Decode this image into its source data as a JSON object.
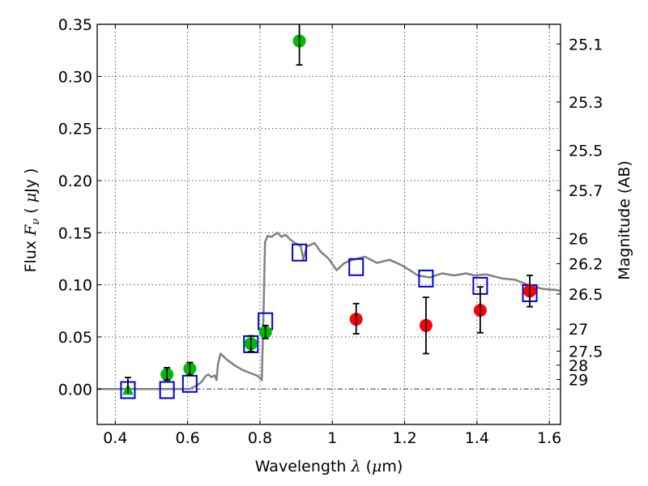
{
  "chart_data": {
    "type": "scatter",
    "title": "",
    "xlabel": "Wavelength  λ (μm)",
    "xlabel_parts": {
      "prefix": "Wavelength  ",
      "symbol": "λ",
      "suffix_open": " (",
      "unit_symbol": "μ",
      "suffix_close": "m)"
    },
    "ylabel": "Flux  Fν  ( μJy )",
    "ylabel_parts": {
      "prefix": "Flux  ",
      "symbol": "F",
      "sub": "ν",
      "mid": "  ( ",
      "unit_symbol": "μ",
      "suffix": "Jy )"
    },
    "y2label": "Magnitude (AB)",
    "xlim": [
      0.35,
      1.631
    ],
    "ylim": [
      -0.034,
      0.35
    ],
    "grid": true,
    "x_ticks": [
      0.4,
      0.6,
      0.8,
      1.0,
      1.2,
      1.4,
      1.6
    ],
    "x_tick_labels": [
      "0.4",
      "0.6",
      "0.8",
      "1",
      "1.2",
      "1.4",
      "1.6"
    ],
    "y_ticks": [
      0.0,
      0.05,
      0.1,
      0.15,
      0.2,
      0.25,
      0.3,
      0.35
    ],
    "y_tick_labels": [
      "0.00",
      "0.05",
      "0.10",
      "0.15",
      "0.20",
      "0.25",
      "0.30",
      "0.35"
    ],
    "y2_ticks_mag": [
      25.1,
      25.3,
      25.5,
      25.7,
      26,
      26.2,
      26.5,
      27,
      27.5,
      28,
      29
    ],
    "y2_tick_labels": [
      "25.1",
      "25.3",
      "25.5",
      "25.7",
      "26",
      "26.2",
      "26.5",
      "27",
      "27.5",
      "28",
      "29"
    ],
    "ab_zero_point_ujy": 23.9,
    "colors": {
      "model": "#808080",
      "model_photometry": "#0000dd",
      "observed_green": "#00bb00",
      "observed_red": "#ff0000",
      "errorbar": "#000000",
      "grid": "#555555"
    },
    "series": [
      {
        "name": "model-spectrum",
        "type": "line",
        "x": [
          0.35,
          0.45,
          0.55,
          0.606,
          0.628,
          0.639,
          0.65,
          0.657,
          0.666,
          0.675,
          0.68,
          0.684,
          0.691,
          0.704,
          0.715,
          0.731,
          0.753,
          0.776,
          0.794,
          0.805,
          0.81,
          0.814,
          0.821,
          0.832,
          0.848,
          0.859,
          0.871,
          0.882,
          0.893,
          0.913,
          0.92,
          0.929,
          0.938,
          0.951,
          0.967,
          0.99,
          1.012,
          1.034,
          1.057,
          1.09,
          1.124,
          1.158,
          1.191,
          1.214,
          1.236,
          1.27,
          1.303,
          1.337,
          1.37,
          1.392,
          1.426,
          1.471,
          1.504,
          1.549,
          1.583,
          1.619,
          1.631
        ],
        "y": [
          0.0,
          0.0,
          0.0,
          0.0,
          0.004,
          0.007,
          0.0125,
          0.014,
          0.0115,
          0.013,
          0.0085,
          0.024,
          0.034,
          0.0295,
          0.0265,
          0.0225,
          0.018,
          0.015,
          0.0125,
          0.0085,
          0.075,
          0.141,
          0.147,
          0.146,
          0.15,
          0.146,
          0.148,
          0.144,
          0.141,
          0.137,
          0.124,
          0.137,
          0.138,
          0.14,
          0.132,
          0.125,
          0.114,
          0.121,
          0.124,
          0.127,
          0.121,
          0.124,
          0.119,
          0.114,
          0.109,
          0.107,
          0.111,
          0.109,
          0.111,
          0.109,
          0.11,
          0.106,
          0.105,
          0.099,
          0.096,
          0.095,
          0.094
        ]
      },
      {
        "name": "model-photometry",
        "type": "scatter",
        "marker": "open-square",
        "x": [
          0.435,
          0.543,
          0.606,
          0.775,
          0.815,
          0.909,
          1.066,
          1.259,
          1.409,
          1.546
        ],
        "y": [
          -0.001,
          -0.001,
          0.005,
          0.043,
          0.065,
          0.131,
          0.117,
          0.106,
          0.099,
          0.092
        ]
      },
      {
        "name": "observed-optical",
        "type": "errorbar",
        "marker": "circle",
        "x": [
          0.543,
          0.606,
          0.775,
          0.815,
          0.909
        ],
        "y": [
          0.014,
          0.0195,
          0.0435,
          0.0545,
          0.334
        ],
        "yerr_low": [
          0.0055,
          0.006,
          0.0075,
          0.006,
          0.023
        ],
        "yerr_high": [
          0.0065,
          0.006,
          0.0075,
          0.0065,
          0.023
        ]
      },
      {
        "name": "observed-upper-limit",
        "type": "errorbar",
        "marker": "triangle-up",
        "x": [
          0.435
        ],
        "y": [
          -0.004
        ],
        "yerr_low": [
          0.0
        ],
        "yerr_high": [
          0.015
        ]
      },
      {
        "name": "observed-nir",
        "type": "errorbar",
        "marker": "circle",
        "x": [
          1.066,
          1.259,
          1.409,
          1.546
        ],
        "y": [
          0.067,
          0.061,
          0.0755,
          0.094
        ],
        "yerr_low": [
          0.014,
          0.027,
          0.0215,
          0.015
        ],
        "yerr_high": [
          0.015,
          0.027,
          0.0225,
          0.015
        ]
      }
    ]
  }
}
